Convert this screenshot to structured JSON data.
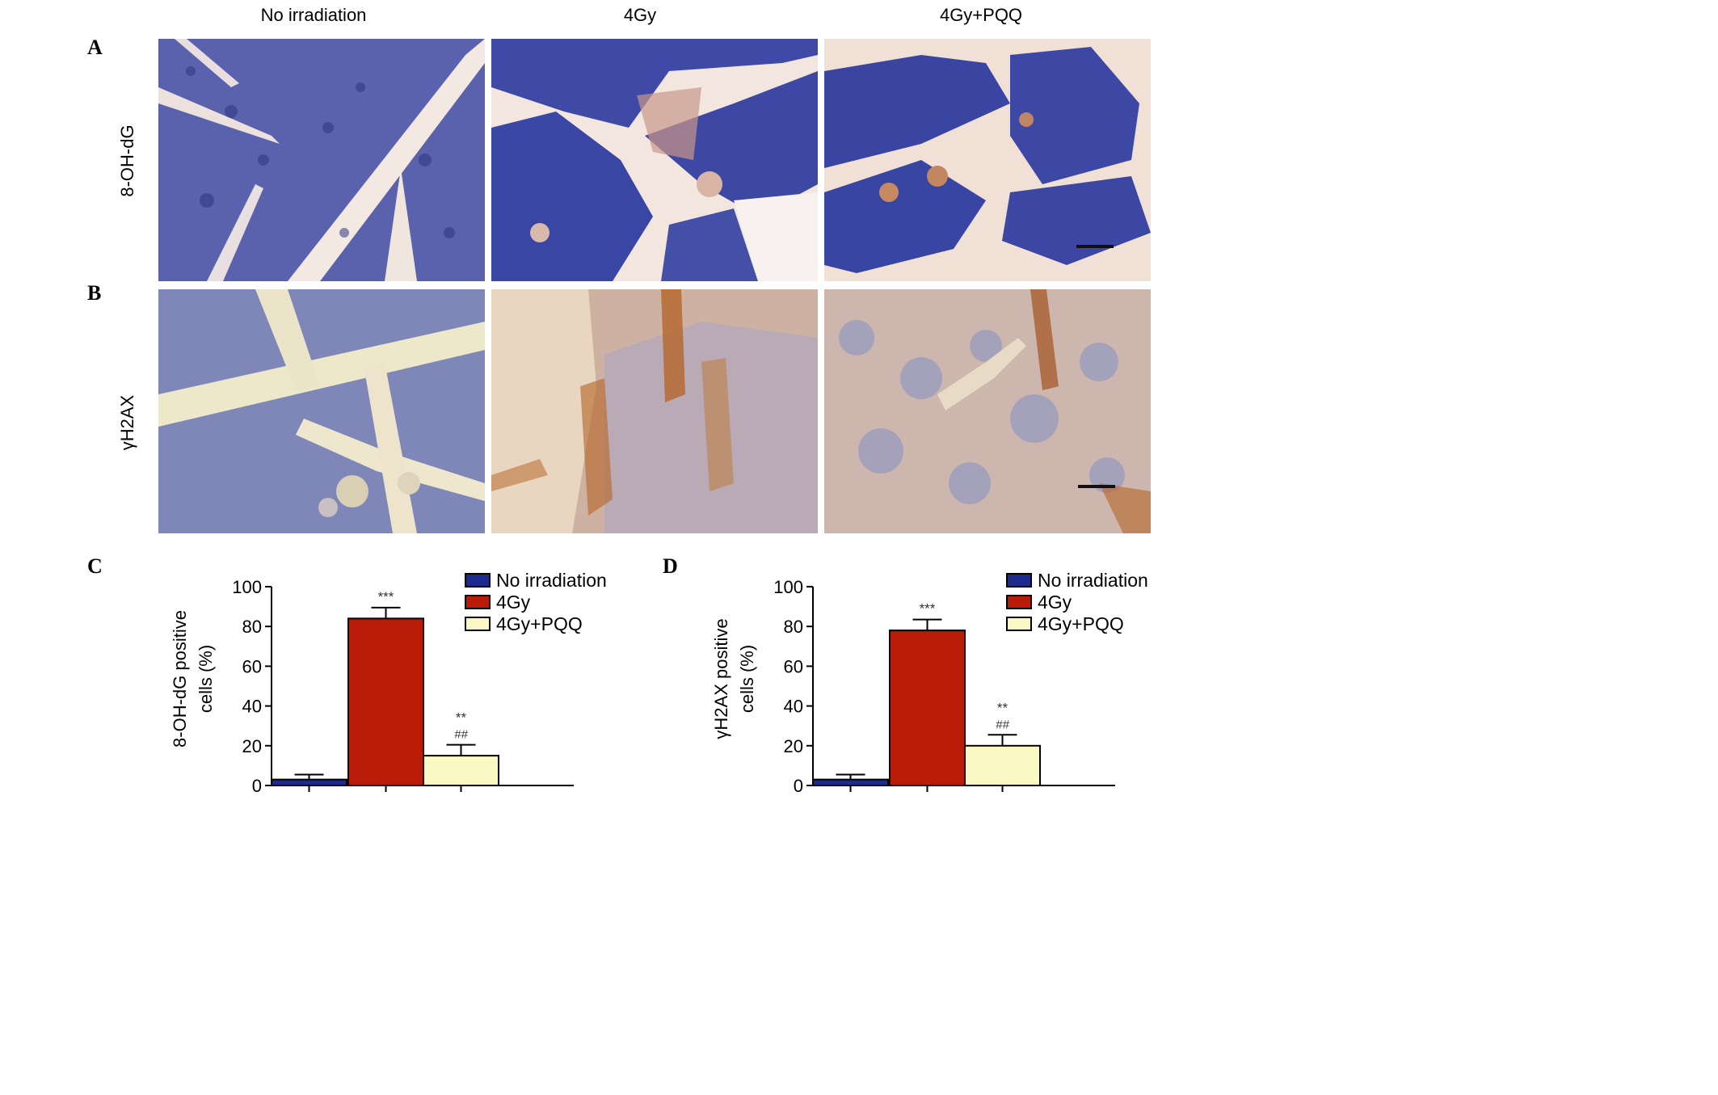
{
  "columns": [
    "No irradiation",
    "4Gy",
    "4Gy+PQQ"
  ],
  "panels": {
    "A": {
      "letter": "A",
      "row_label": "8-OH-dG"
    },
    "B": {
      "letter": "B",
      "row_label": "γH2AX"
    },
    "C": {
      "letter": "C"
    },
    "D": {
      "letter": "D"
    }
  },
  "colors": {
    "no_irradiation": "#1d2a8e",
    "4gy": "#b81c08",
    "4gy_pqq": "#fbf8c4",
    "tissue_blue": "#4b55a8",
    "tissue_B": "#9aa0c8",
    "stroma": "#f4ebe1",
    "brown_stain": "#b5652a"
  },
  "chart_data": [
    {
      "type": "bar",
      "panel": "C",
      "categories": [
        "No irradiation",
        "4Gy",
        "4Gy+PQQ"
      ],
      "values": [
        3,
        84,
        15
      ],
      "errors": [
        2.5,
        5.5,
        5.5
      ],
      "annotations": [
        "",
        "***",
        "**\n##"
      ],
      "legend": [
        "No irradiation",
        "4Gy",
        "4Gy+PQQ"
      ],
      "legend_position": "top-right",
      "ylabel": "8-OH-dG positive cells (%)",
      "ylabel_lines": [
        "8-OH-dG positive",
        "cells (%)"
      ],
      "yticks": [
        0,
        20,
        40,
        60,
        80,
        100
      ],
      "ylim": [
        0,
        100
      ]
    },
    {
      "type": "bar",
      "panel": "D",
      "categories": [
        "No irradiation",
        "4Gy",
        "4Gy+PQQ"
      ],
      "values": [
        3,
        78,
        20
      ],
      "errors": [
        2.5,
        5.5,
        5.5
      ],
      "annotations": [
        "",
        "***",
        "**\n##"
      ],
      "legend": [
        "No irradiation",
        "4Gy",
        "4Gy+PQQ"
      ],
      "legend_position": "top-right",
      "ylabel": "γH2AX positive cells (%)",
      "ylabel_lines": [
        "γH2AX positive",
        "cells (%)"
      ],
      "yticks": [
        0,
        20,
        40,
        60,
        80,
        100
      ],
      "ylim": [
        0,
        100
      ]
    }
  ]
}
